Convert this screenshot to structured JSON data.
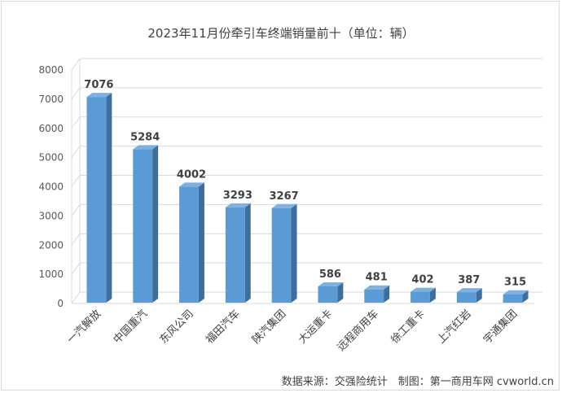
{
  "chart_data": {
    "type": "bar",
    "title": "2023年11月份牵引车终端销量前十（单位：辆）",
    "source": "数据来源：交强险统计　制图：第一商用车网 cvworld.cn",
    "categories": [
      "一汽解放",
      "中国重汽",
      "东风公司",
      "福田汽车",
      "陕汽集团",
      "大运重卡",
      "远程商用车",
      "徐工重卡",
      "上汽红岩",
      "宇通集团"
    ],
    "values": [
      7076,
      5284,
      4002,
      3293,
      3267,
      586,
      481,
      402,
      387,
      315
    ],
    "ylim": [
      0,
      8000
    ],
    "yticks": [
      0,
      1000,
      2000,
      3000,
      4000,
      5000,
      6000,
      7000,
      8000
    ],
    "grid": true,
    "legend": "none",
    "xlabel": "",
    "ylabel": "",
    "colors": {
      "bar_front": "#5b9bd5",
      "bar_side": "#3e6f9c",
      "bar_top": "#7fb0de",
      "grid": "#d9d9d9"
    }
  }
}
